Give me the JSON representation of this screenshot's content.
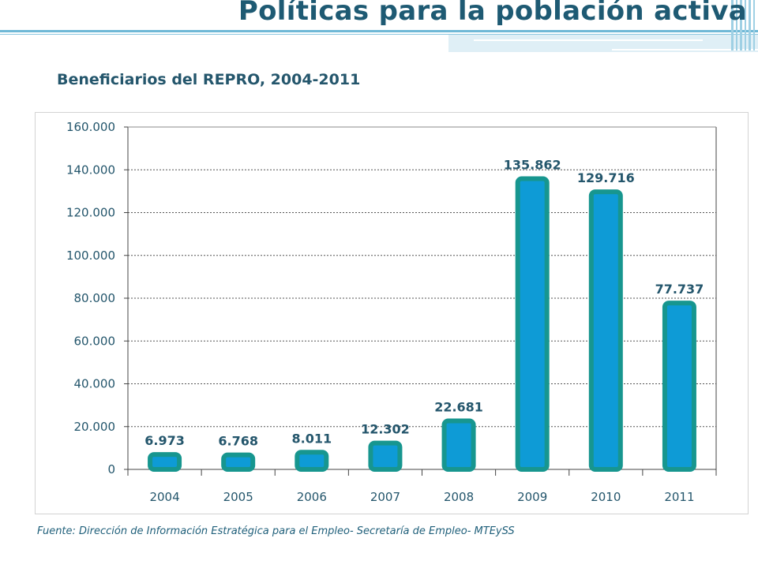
{
  "slide": {
    "title": "Políticas para la población activa",
    "source": "Fuente: Dirección de Información Estratégica para el Empleo- Secretaría de Empleo- MTEySS"
  },
  "colors": {
    "title": "#1e5a73",
    "bar_fill": "#0e9bd6",
    "bar_border": "#17968f",
    "label": "#24566c"
  },
  "chart_data": {
    "type": "bar",
    "title": "Beneficiarios del REPRO, 2004-2011",
    "categories": [
      "2004",
      "2005",
      "2006",
      "2007",
      "2008",
      "2009",
      "2010",
      "2011"
    ],
    "values": [
      6973,
      6768,
      8011,
      12302,
      22681,
      135862,
      129716,
      77737
    ],
    "value_labels": [
      "6.973",
      "6.768",
      "8.011",
      "12.302",
      "22.681",
      "135.862",
      "129.716",
      "77.737"
    ],
    "yticks": [
      0,
      20000,
      40000,
      60000,
      80000,
      100000,
      120000,
      140000,
      160000
    ],
    "ytick_labels": [
      "0",
      "20.000",
      "40.000",
      "60.000",
      "80.000",
      "100.000",
      "120.000",
      "140.000",
      "160.000"
    ],
    "ylim": [
      0,
      160000
    ],
    "grid": true,
    "legend": false
  }
}
